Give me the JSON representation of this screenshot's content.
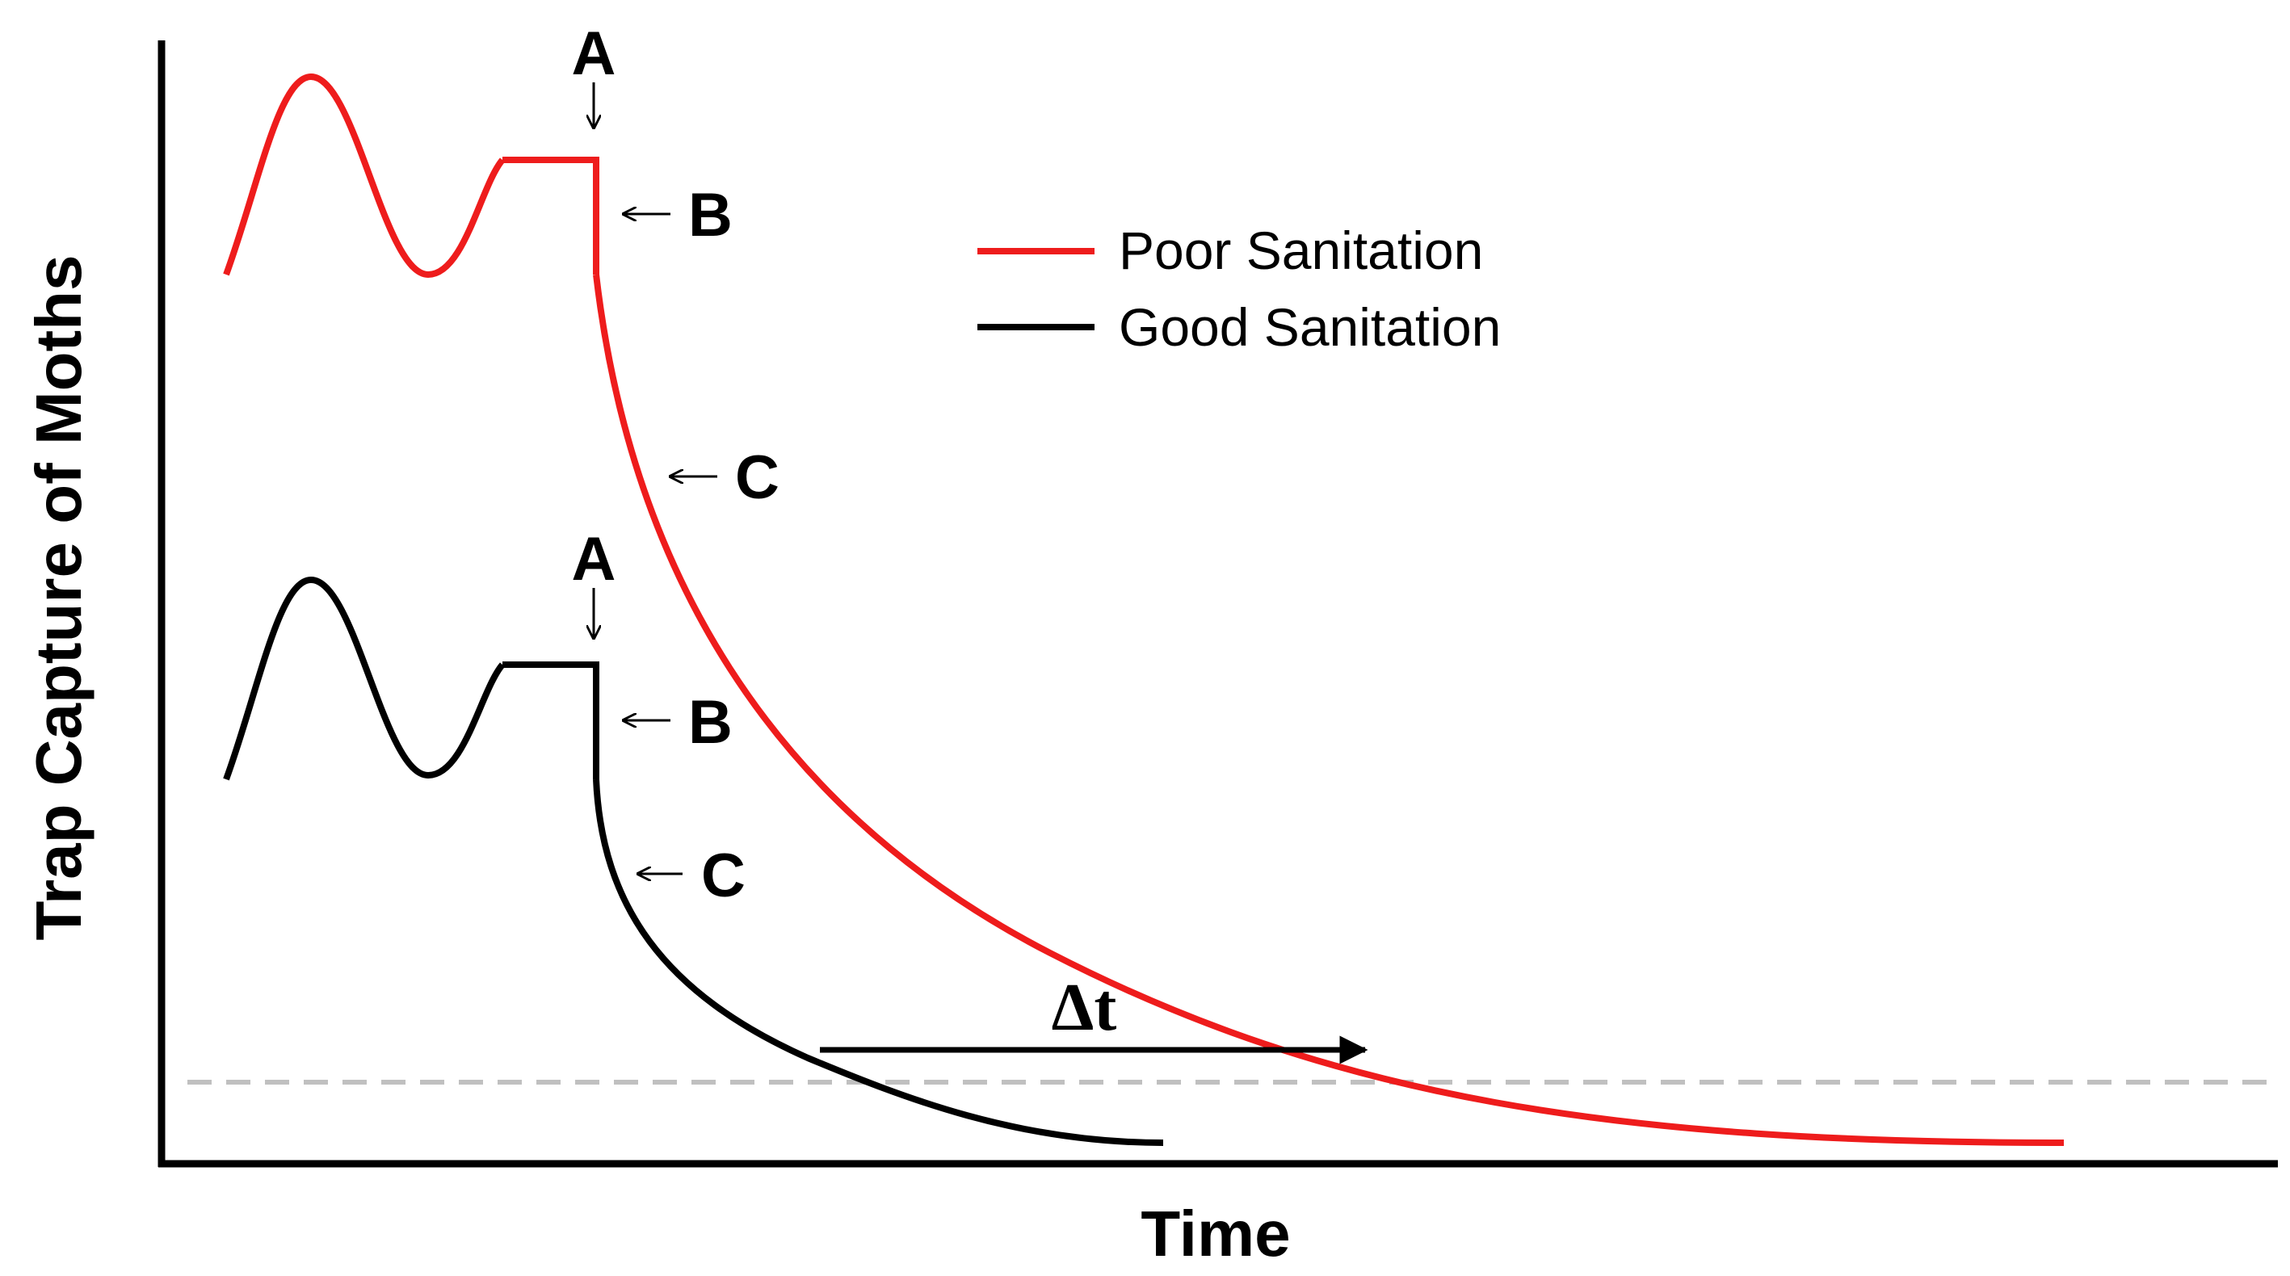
{
  "axes": {
    "x_label": "Time",
    "y_label": "Trap Capture of Moths"
  },
  "legend": {
    "items": [
      {
        "label": "Poor Sanitation",
        "color": "#ee1c1c"
      },
      {
        "label": "Good Sanitation",
        "color": "#000000"
      }
    ]
  },
  "annotations": {
    "poor": {
      "a": "A",
      "b": "B",
      "c": "C"
    },
    "good": {
      "a": "A",
      "b": "B",
      "c": "C"
    },
    "delta_t": "Δt"
  },
  "colors": {
    "poor_curve": "#ee1c1c",
    "good_curve": "#000000",
    "threshold_line": "#c0c0c0",
    "axis": "#000000"
  }
}
